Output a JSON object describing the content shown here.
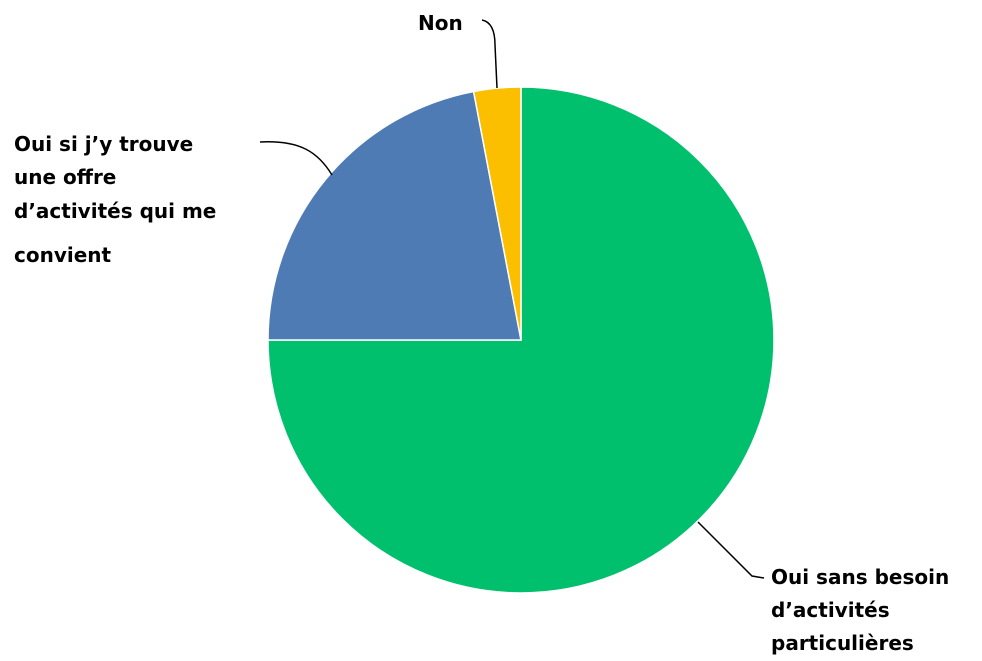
{
  "chart_data": {
    "type": "pie",
    "title": "",
    "start_angle_deg": 0,
    "direction": "clockwise",
    "slices": [
      {
        "label": "Oui sans besoin d’activités particulières",
        "lines": [
          "Oui sans besoin",
          "d’activités",
          "particulières"
        ],
        "value": 75,
        "color": "#00C06E"
      },
      {
        "label": "Oui si j’y trouve une offre d’activités qui me convient",
        "lines": [
          "Oui si j’y trouve",
          "une offre",
          "d’activités qui me",
          "convient"
        ],
        "value": 22,
        "color": "#4F7BB5"
      },
      {
        "label": "Non",
        "lines": [
          "Non"
        ],
        "value": 3,
        "color": "#FBBF00"
      }
    ]
  }
}
